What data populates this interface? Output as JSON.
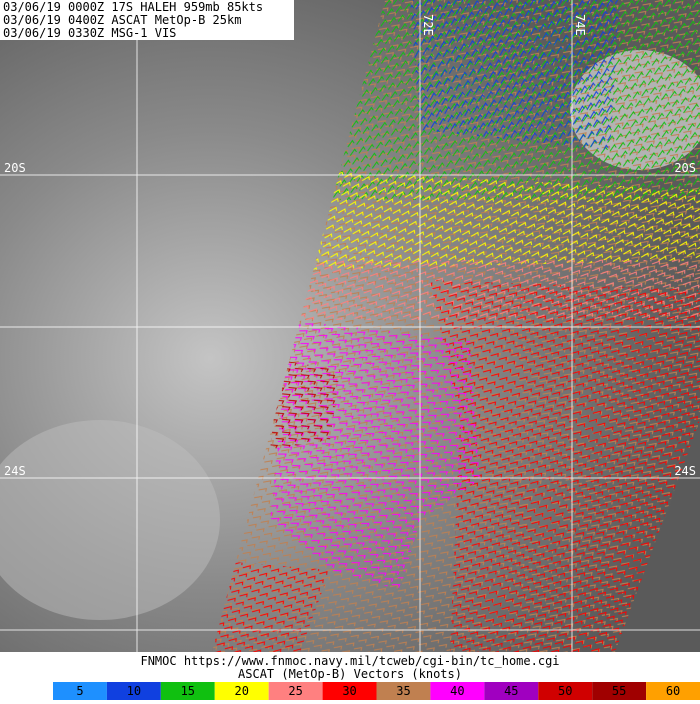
{
  "header": {
    "lines": [
      "03/06/19 0000Z  17S HALEH 959mb 85kts",
      "03/06/19 0400Z  ASCAT MetOp-B 25km",
      "03/06/19 0330Z  MSG-1 VIS"
    ]
  },
  "grid_labels": {
    "top": [
      "72E",
      "74E"
    ],
    "left": [
      "20S",
      "24S"
    ],
    "right": [
      "20S",
      "24S"
    ]
  },
  "footer": {
    "source": "FNMOC https://www.fnmoc.navy.mil/tcweb/cgi-bin/tc_home.cgi",
    "legend_title": "ASCAT (MetOp-B) Vectors (knots)"
  },
  "legend": {
    "items": [
      {
        "value": 5,
        "color": "#1e90ff"
      },
      {
        "value": 10,
        "color": "#1040e0"
      },
      {
        "value": 15,
        "color": "#10c010"
      },
      {
        "value": 20,
        "color": "#ffff00"
      },
      {
        "value": 25,
        "color": "#ff8080"
      },
      {
        "value": 30,
        "color": "#ff0000"
      },
      {
        "value": 35,
        "color": "#c08050"
      },
      {
        "value": 40,
        "color": "#ff00ff"
      },
      {
        "value": 45,
        "color": "#a000c0"
      },
      {
        "value": 50,
        "color": "#d00000"
      },
      {
        "value": 55,
        "color": "#a00000"
      },
      {
        "value": 60,
        "color": "#ffa000"
      }
    ]
  }
}
